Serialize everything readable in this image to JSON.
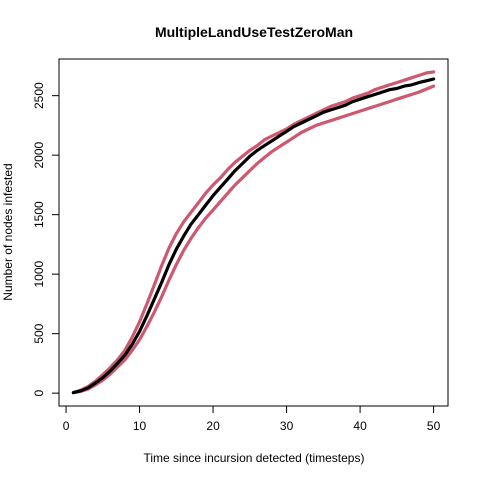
{
  "chart_data": {
    "type": "line",
    "title": "MultipleLandUseTestZeroMan",
    "xlabel": "Time since incursion detected (timesteps)",
    "ylabel": "Number of nodes infested",
    "xlim": [
      -0.96,
      51.96
    ],
    "ylim": [
      -108,
      2808
    ],
    "x_ticks": [
      0,
      10,
      20,
      30,
      40,
      50
    ],
    "y_ticks": [
      0,
      500,
      1000,
      1500,
      2000,
      2500
    ],
    "grid": false,
    "legend": "none",
    "series": [
      {
        "color": "#000000",
        "x": [
          1,
          2,
          3,
          4,
          5,
          6,
          7,
          8,
          9,
          10,
          11,
          12,
          13,
          14,
          15,
          16,
          17,
          18,
          19,
          20,
          21,
          22,
          23,
          24,
          25,
          26,
          27,
          28,
          29,
          30,
          31,
          32,
          33,
          34,
          35,
          36,
          37,
          38,
          39,
          40,
          41,
          42,
          43,
          44,
          45,
          46,
          47,
          48,
          49,
          50
        ],
        "y": [
          5,
          20,
          45,
          85,
          130,
          185,
          250,
          320,
          410,
          520,
          650,
          790,
          930,
          1080,
          1210,
          1320,
          1420,
          1500,
          1580,
          1660,
          1730,
          1800,
          1870,
          1930,
          1990,
          2040,
          2080,
          2120,
          2160,
          2200,
          2240,
          2270,
          2300,
          2330,
          2360,
          2380,
          2400,
          2420,
          2450,
          2470,
          2490,
          2510,
          2530,
          2550,
          2560,
          2580,
          2590,
          2610,
          2625,
          2640
        ]
      },
      {
        "color": "#cd5870",
        "x": [
          1,
          2,
          3,
          4,
          5,
          6,
          7,
          8,
          9,
          10,
          11,
          12,
          13,
          14,
          15,
          16,
          17,
          18,
          19,
          20,
          21,
          22,
          23,
          24,
          25,
          26,
          27,
          28,
          29,
          30,
          31,
          32,
          33,
          34,
          35,
          36,
          37,
          38,
          39,
          40,
          41,
          42,
          43,
          44,
          45,
          46,
          47,
          48,
          49,
          50
        ],
        "y": [
          5,
          25,
          55,
          100,
          155,
          215,
          280,
          360,
          470,
          600,
          750,
          910,
          1070,
          1220,
          1340,
          1440,
          1520,
          1600,
          1680,
          1750,
          1810,
          1880,
          1940,
          1990,
          2040,
          2080,
          2130,
          2160,
          2190,
          2220,
          2260,
          2290,
          2320,
          2350,
          2380,
          2410,
          2430,
          2450,
          2480,
          2500,
          2520,
          2550,
          2570,
          2590,
          2610,
          2630,
          2650,
          2670,
          2690,
          2700
        ]
      },
      {
        "color": "#cd5870",
        "x": [
          1,
          2,
          3,
          4,
          5,
          6,
          7,
          8,
          9,
          10,
          11,
          12,
          13,
          14,
          15,
          16,
          17,
          18,
          19,
          20,
          21,
          22,
          23,
          24,
          25,
          26,
          27,
          28,
          29,
          30,
          31,
          32,
          33,
          34,
          35,
          36,
          37,
          38,
          39,
          40,
          41,
          42,
          43,
          44,
          45,
          46,
          47,
          48,
          49,
          50
        ],
        "y": [
          5,
          15,
          35,
          70,
          110,
          160,
          220,
          280,
          360,
          450,
          560,
          680,
          810,
          950,
          1080,
          1200,
          1300,
          1390,
          1470,
          1540,
          1610,
          1680,
          1750,
          1810,
          1870,
          1930,
          1980,
          2030,
          2070,
          2110,
          2150,
          2190,
          2220,
          2250,
          2270,
          2290,
          2310,
          2330,
          2350,
          2370,
          2390,
          2410,
          2430,
          2450,
          2470,
          2490,
          2510,
          2530,
          2555,
          2580
        ]
      }
    ]
  }
}
